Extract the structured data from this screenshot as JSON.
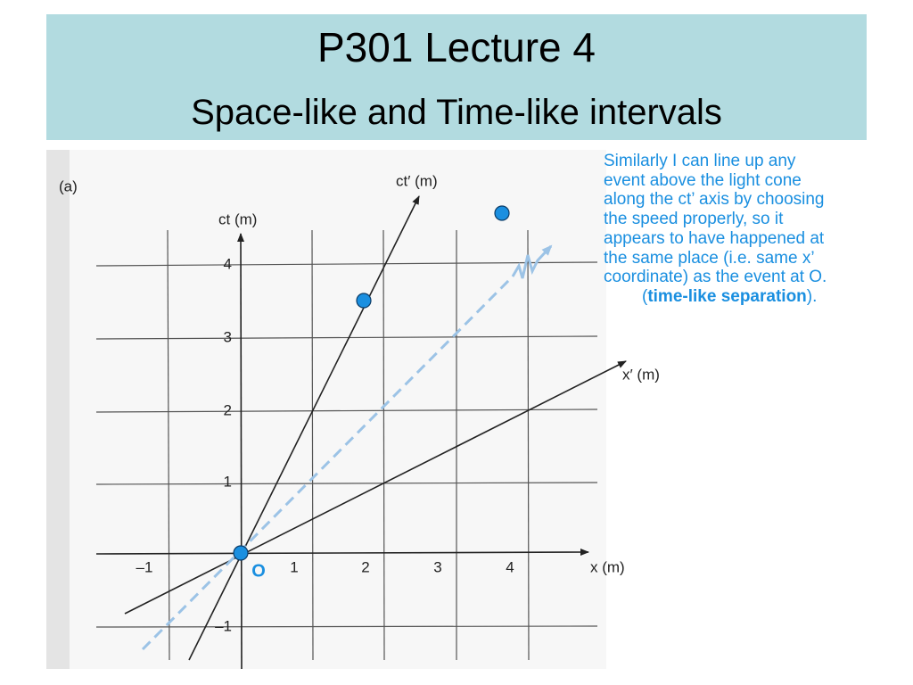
{
  "header": {
    "title": "P301 Lecture 4",
    "subtitle": "Space-like and Time-like intervals"
  },
  "figure": {
    "panel": "(a)",
    "ct_axis": "ct (m)",
    "ct_prime_axis": "ct′ (m)",
    "x_axis": "x (m)",
    "x_prime_axis": "x′ (m)",
    "origin": "O",
    "x_ticks": [
      "–1",
      "1",
      "2",
      "3",
      "4"
    ],
    "y_ticks": [
      "4",
      "3",
      "2",
      "1",
      "–1"
    ]
  },
  "note": {
    "lines": [
      "Similarly I can line up any",
      "event above the light cone",
      "along the ct’ axis by choosing",
      "the speed properly, so it",
      "appears to have happened at",
      "the same place (i.e. same x’",
      "coordinate) as the event at O."
    ],
    "last": {
      "before": "(",
      "bold": "time-like separation",
      "after": ")."
    }
  }
}
